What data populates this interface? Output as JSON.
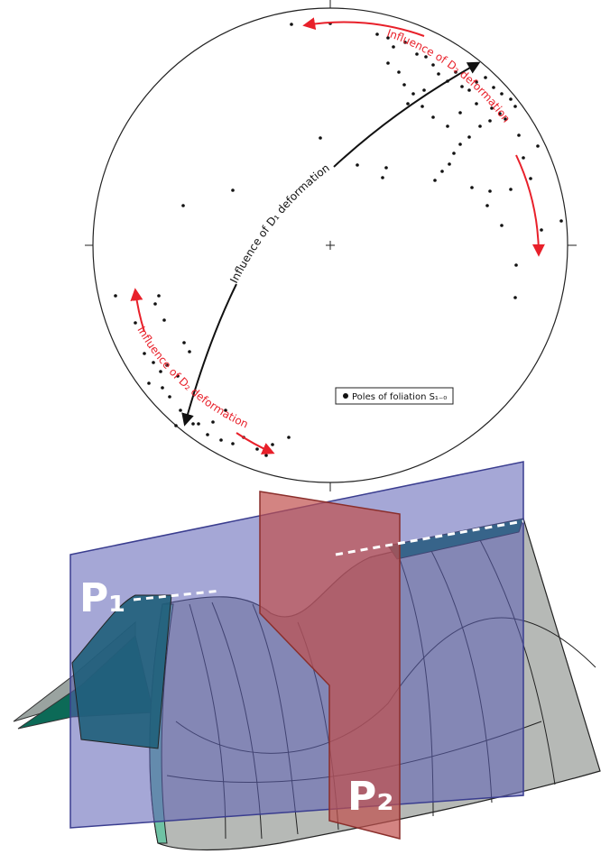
{
  "stereonet": {
    "d1_label": "Influence of D₁ deformation",
    "d2_label_upper": "Influence of D₂ deformation",
    "d2_label_lower": "Influence of D₂ deformation",
    "legend_label": "Poles of foliation S₁₋₀",
    "colors": {
      "d2": "#e8202a",
      "d1": "#111111"
    }
  },
  "block": {
    "plane1_label": "P₁",
    "plane2_label": "P₂",
    "colors": {
      "plane1": "#5b5fb5",
      "plane2": "#c0504d",
      "surface": "#b6b9b6",
      "green": "#3f9e7f",
      "teal": "#1f5f7a"
    }
  }
}
